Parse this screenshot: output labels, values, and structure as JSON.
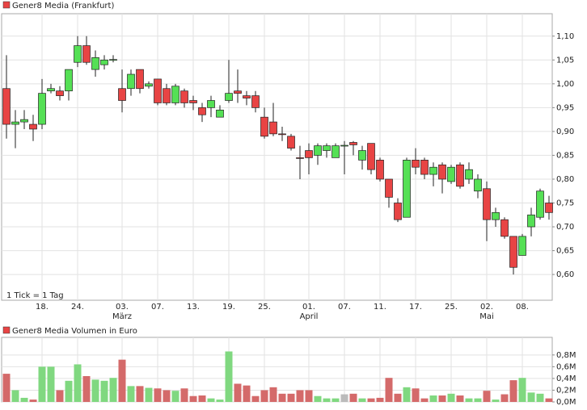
{
  "chart_data": [
    {
      "type": "candlestick",
      "title": "Gener8 Media (Frankfurt)",
      "note": "1 Tick = 1 Tag",
      "categories": [
        null,
        null,
        null,
        null,
        "18.",
        null,
        null,
        null,
        "24.",
        null,
        null,
        null,
        null,
        {
          "day": "03.",
          "month": "März"
        },
        null,
        null,
        null,
        "07.",
        null,
        null,
        null,
        "13.",
        null,
        null,
        null,
        "19.",
        null,
        null,
        null,
        "25.",
        null,
        null,
        null,
        null,
        {
          "day": "01.",
          "month": "April"
        },
        null,
        null,
        null,
        "07.",
        null,
        null,
        null,
        "11.",
        null,
        null,
        null,
        "17.",
        null,
        null,
        null,
        "25.",
        null,
        null,
        null,
        {
          "day": "02.",
          "month": "Mai"
        },
        null,
        null,
        null,
        "08.",
        null,
        null,
        null
      ],
      "open": [
        0.99,
        0.915,
        0.92,
        0.915,
        0.915,
        0.985,
        0.985,
        0.985,
        1.045,
        1.08,
        1.03,
        1.04,
        1.05,
        0.99,
        0.99,
        1.03,
        0.995,
        1.01,
        0.99,
        0.96,
        0.985,
        0.965,
        0.95,
        0.95,
        0.93,
        0.965,
        0.985,
        0.975,
        0.975,
        0.93,
        0.92,
        0.895,
        0.89,
        0.845,
        0.86,
        0.85,
        0.86,
        0.845,
        0.871,
        0.877,
        0.84,
        0.875,
        0.84,
        0.8,
        0.75,
        0.72,
        0.84,
        0.84,
        0.81,
        0.83,
        0.795,
        0.83,
        0.8,
        0.775,
        0.78,
        0.715,
        0.715,
        0.68,
        0.64,
        0.7,
        0.72,
        0.75
      ],
      "high": [
        1.06,
        0.945,
        0.945,
        0.935,
        1.01,
        1.0,
        0.995,
        1.03,
        1.1,
        1.1,
        1.07,
        1.06,
        1.06,
        1.03,
        1.03,
        1.03,
        1.005,
        1.01,
        1.0,
        1.0,
        0.99,
        0.975,
        0.96,
        0.975,
        0.955,
        1.05,
        1.03,
        0.985,
        0.985,
        0.95,
        0.96,
        0.91,
        0.895,
        0.87,
        0.875,
        0.875,
        0.875,
        0.875,
        0.88,
        0.88,
        0.87,
        0.875,
        0.845,
        0.8,
        0.76,
        0.845,
        0.865,
        0.845,
        0.835,
        0.835,
        0.83,
        0.835,
        0.835,
        0.81,
        0.795,
        0.74,
        0.72,
        0.68,
        0.685,
        0.74,
        0.78,
        0.765
      ],
      "low": [
        0.885,
        0.865,
        0.905,
        0.88,
        0.905,
        0.98,
        0.965,
        0.965,
        1.035,
        1.04,
        1.015,
        1.03,
        1.045,
        0.94,
        0.975,
        0.98,
        0.99,
        0.955,
        0.955,
        0.955,
        0.95,
        0.945,
        0.92,
        0.93,
        0.93,
        0.96,
        0.96,
        0.955,
        0.94,
        0.885,
        0.89,
        0.88,
        0.86,
        0.8,
        0.81,
        0.83,
        0.845,
        0.845,
        0.81,
        0.85,
        0.82,
        0.81,
        0.795,
        0.74,
        0.71,
        0.72,
        0.81,
        0.8,
        0.785,
        0.77,
        0.79,
        0.78,
        0.79,
        0.76,
        0.67,
        0.7,
        0.675,
        0.6,
        0.64,
        0.68,
        0.715,
        0.715
      ],
      "close": [
        0.915,
        0.92,
        0.925,
        0.905,
        0.98,
        0.99,
        0.975,
        1.03,
        1.08,
        1.045,
        1.055,
        1.05,
        1.051,
        0.965,
        1.02,
        0.99,
        1.0,
        0.96,
        0.96,
        0.995,
        0.96,
        0.96,
        0.935,
        0.965,
        0.945,
        0.98,
        0.98,
        0.97,
        0.95,
        0.89,
        0.895,
        0.894,
        0.865,
        0.844,
        0.845,
        0.87,
        0.87,
        0.87,
        0.871,
        0.872,
        0.86,
        0.82,
        0.8,
        0.762,
        0.715,
        0.84,
        0.825,
        0.81,
        0.825,
        0.8,
        0.825,
        0.785,
        0.82,
        0.8,
        0.715,
        0.73,
        0.68,
        0.615,
        0.68,
        0.725,
        0.775,
        0.73
      ],
      "up_color": "#55e055",
      "down_color": "#e84444",
      "ylim": [
        0.546,
        1.147
      ],
      "yticks": [
        {
          "value": 0.6,
          "label": "0,60"
        },
        {
          "value": 0.65,
          "label": "0,65"
        },
        {
          "value": 0.7,
          "label": "0,70"
        },
        {
          "value": 0.75,
          "label": "0,75"
        },
        {
          "value": 0.8,
          "label": "0,80"
        },
        {
          "value": 0.85,
          "label": "0,85"
        },
        {
          "value": 0.9,
          "label": "0,90"
        },
        {
          "value": 0.95,
          "label": "0,95"
        },
        {
          "value": 1.0,
          "label": "1,00"
        },
        {
          "value": 1.05,
          "label": "1,05"
        },
        {
          "value": 1.1,
          "label": "1,10"
        }
      ],
      "grid": true
    },
    {
      "type": "bar",
      "title": "Gener8 Media Volumen in Euro",
      "values": [
        0.48,
        0.2,
        0.07,
        0.04,
        0.6,
        0.6,
        0.2,
        0.36,
        0.64,
        0.44,
        0.38,
        0.36,
        0.41,
        0.72,
        0.27,
        0.27,
        0.24,
        0.23,
        0.2,
        0.19,
        0.23,
        0.1,
        0.11,
        0.06,
        0.04,
        0.86,
        0.31,
        0.28,
        0.1,
        0.2,
        0.25,
        0.14,
        0.14,
        0.2,
        0.2,
        0.1,
        0.06,
        0.06,
        0.13,
        0.14,
        0.06,
        0.06,
        0.07,
        0.41,
        0.14,
        0.25,
        0.23,
        0.06,
        0.11,
        0.11,
        0.14,
        0.11,
        0.06,
        0.06,
        0.19,
        0.04,
        0.13,
        0.37,
        0.41,
        0.16,
        0.14,
        0.06
      ],
      "up_color": "#80d880",
      "down_color": "#d46a6a",
      "flat_color": "#bbbbbb",
      "ylim": [
        0,
        1.1
      ],
      "yticks": [
        {
          "value": 0,
          "label": "0,0M"
        },
        {
          "value": 0.2,
          "label": "0,2M"
        },
        {
          "value": 0.4,
          "label": "0,4M"
        },
        {
          "value": 0.6,
          "label": "0,6M"
        },
        {
          "value": 0.8,
          "label": "0,8M"
        }
      ],
      "grid": true
    }
  ]
}
